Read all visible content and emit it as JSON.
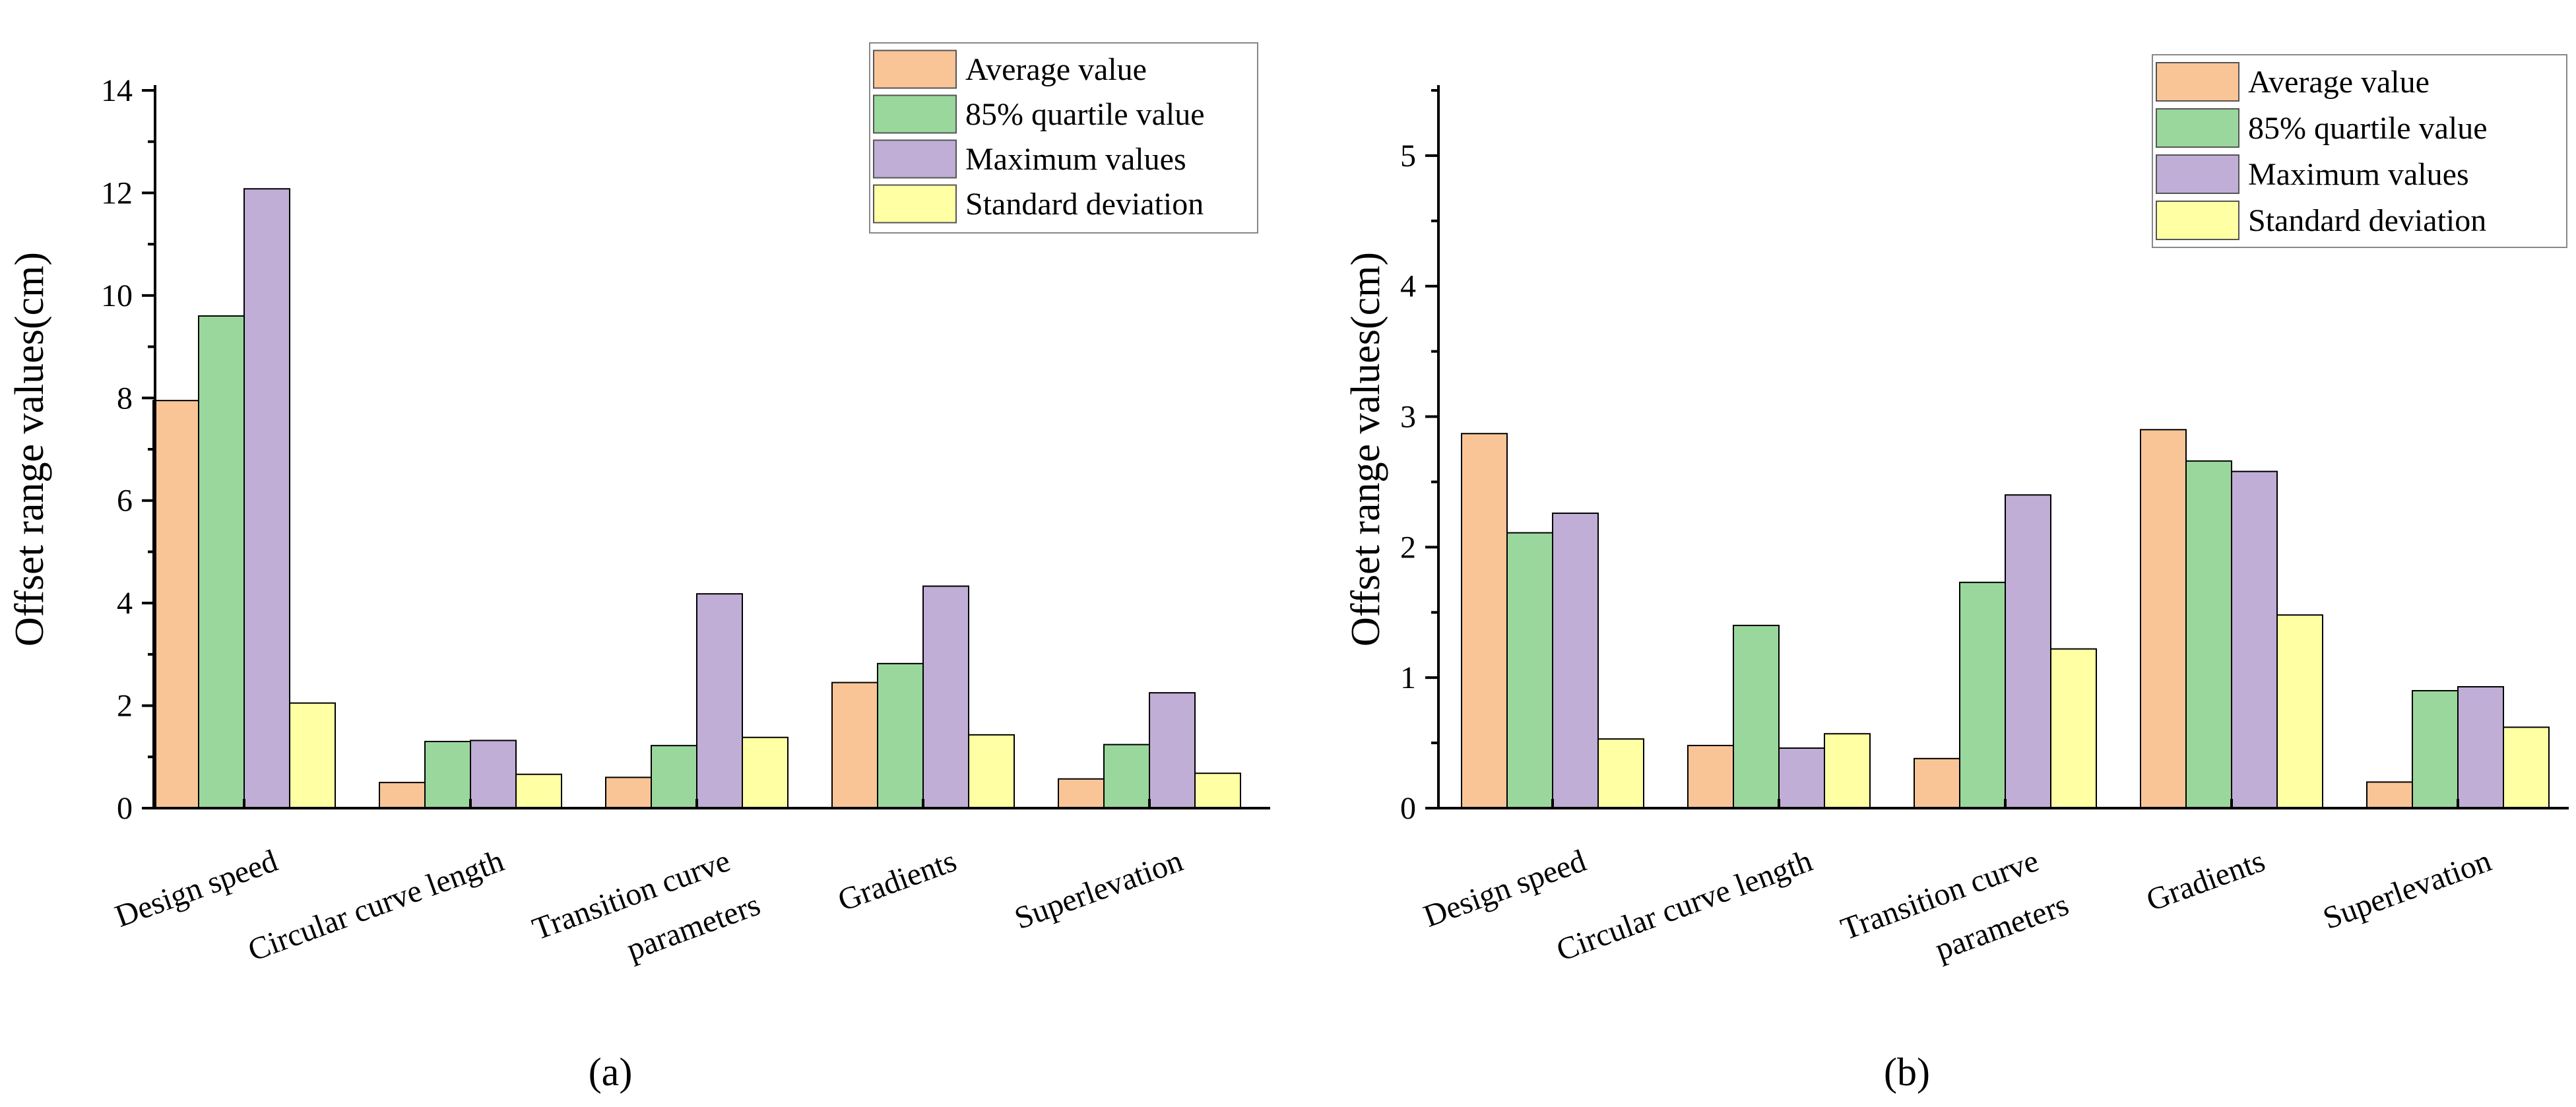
{
  "colors": {
    "Average value": "#F9C597",
    "85% quartile value": "#9AD79D",
    "Maximum values": "#C0AED6",
    "Standard deviation": "#FFFFA4"
  },
  "chart_data": [
    {
      "type": "bar",
      "panel_label": "(a)",
      "ylabel": "Offset range values(cm)",
      "xlabel": "",
      "ylim": [
        0,
        14
      ],
      "yticks": [
        0,
        2,
        4,
        6,
        8,
        10,
        12,
        14
      ],
      "legend_position": "top-right",
      "categories": [
        [
          "Design speed"
        ],
        [
          "Circular curve length"
        ],
        [
          "Transition curve",
          "parameters"
        ],
        [
          "Gradients"
        ],
        [
          "Superlevation"
        ]
      ],
      "series": [
        {
          "name": "Average value",
          "values": [
            7.95,
            0.5,
            0.6,
            2.45,
            0.57
          ]
        },
        {
          "name": "85% quartile value",
          "values": [
            9.6,
            1.3,
            1.22,
            2.82,
            1.24
          ]
        },
        {
          "name": "Maximum values",
          "values": [
            12.08,
            1.32,
            4.18,
            4.33,
            2.25
          ]
        },
        {
          "name": "Standard deviation",
          "values": [
            2.05,
            0.66,
            1.38,
            1.43,
            0.68
          ]
        }
      ]
    },
    {
      "type": "bar",
      "panel_label": "(b)",
      "ylabel": "Offset range values(cm)",
      "xlabel": "",
      "ylim": [
        0,
        5.5
      ],
      "yticks": [
        0,
        1,
        2,
        3,
        4,
        5
      ],
      "legend_position": "top-right",
      "categories": [
        [
          "Design speed"
        ],
        [
          "Circular curve length"
        ],
        [
          "Transition curve",
          "parameters"
        ],
        [
          "Gradients"
        ],
        [
          "Superlevation"
        ]
      ],
      "series": [
        {
          "name": "Average value",
          "values": [
            2.87,
            0.48,
            0.38,
            2.9,
            0.2
          ]
        },
        {
          "name": "85% quartile value",
          "values": [
            2.11,
            1.4,
            1.73,
            2.66,
            0.9
          ]
        },
        {
          "name": "Maximum values",
          "values": [
            2.26,
            0.46,
            2.4,
            2.58,
            0.93
          ]
        },
        {
          "name": "Standard deviation",
          "values": [
            0.53,
            0.57,
            1.22,
            1.48,
            0.62
          ]
        }
      ]
    }
  ]
}
